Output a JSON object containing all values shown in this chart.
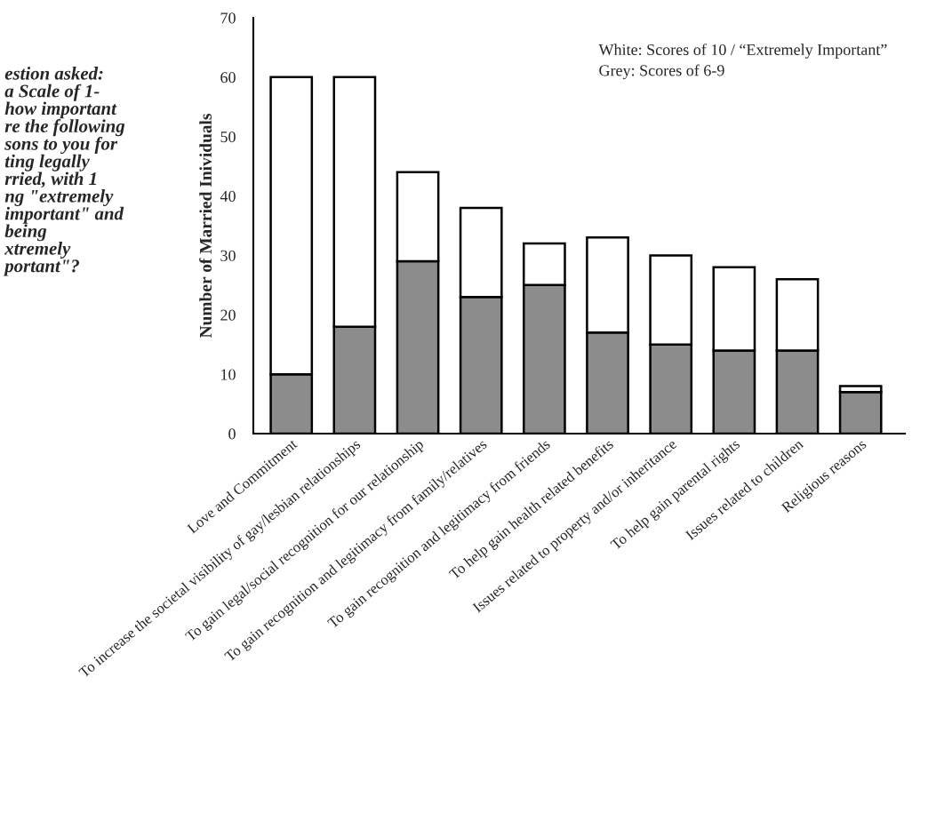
{
  "chart_data": {
    "type": "bar",
    "stacked": true,
    "ylabel": "Number of Married Inividuals",
    "categories": [
      "Love and Commitment",
      "To increase the societal visibility of gay/lesbian relationships",
      "To gain legal/social recognition for our relationship",
      "To gain recognition and legitimacy from family/relatives",
      "To gain recognition and legitimacy from friends",
      "To help gain health related benefits",
      "Issues related to property and/or inheritance",
      "To help gain parental rights",
      "Issues related to children",
      "Religious reasons"
    ],
    "series": [
      {
        "color": "#8c8c8c",
        "values": [
          10,
          18,
          29,
          23,
          25,
          17,
          15,
          14,
          14,
          7
        ]
      },
      {
        "color": "#ffffff",
        "values": [
          50,
          42,
          15,
          15,
          7,
          16,
          15,
          14,
          12,
          1
        ]
      }
    ],
    "ylim": [
      0,
      70
    ],
    "yticks": [
      0,
      10,
      20,
      30,
      40,
      50,
      60,
      70
    ],
    "annotations": [
      "estion asked:\na Scale of 1-\nhow important\nre the following\nsons to you for\nting legally\nrried, with 1\nng \"extremely\nimportant\" and\nbeing\nxtremely\nportant\"?",
      "White: Scores of 10 / “Extremely Important”",
      "Grey: Scores of 6-9"
    ],
    "grid": false,
    "legend": false
  }
}
